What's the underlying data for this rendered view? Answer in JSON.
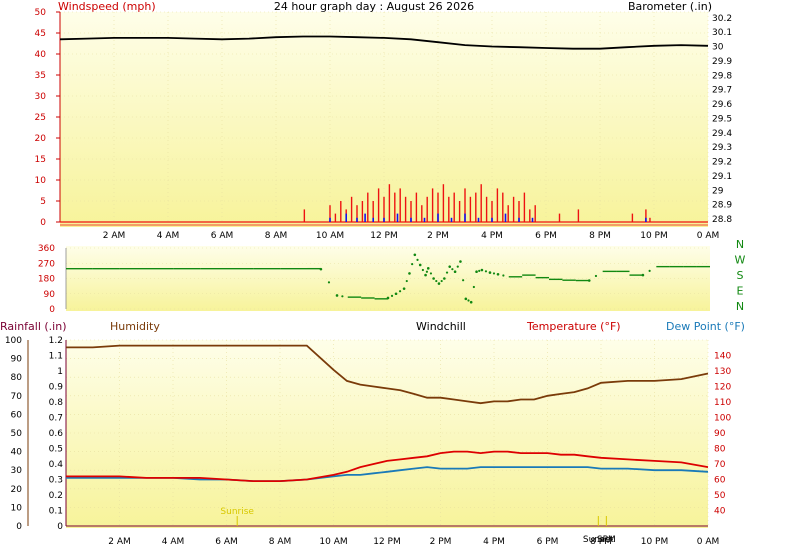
{
  "title": "24 hour graph day : August 26 2026",
  "colors": {
    "panel_top": "#fefee9",
    "panel_bottom": "#f7f39a",
    "wind_avg": "#1111ee",
    "wind_gust": "#ee1111",
    "barometer": "#000000",
    "direction": "#118811",
    "humidity": "#7a3b0a",
    "temperature": "#dd0000",
    "dewpoint": "#1a7ab8",
    "rain_axis": "#7a0033"
  },
  "chart_data": [
    {
      "type": "line",
      "id": "wind_baro",
      "left_label": "Windspeed (mph)",
      "right_label": "Barometer (.in)",
      "left_ylim": [
        0,
        50
      ],
      "left_ticks": [
        "0",
        "5",
        "10",
        "15",
        "20",
        "25",
        "30",
        "35",
        "40",
        "45",
        "50"
      ],
      "right_ylim": [
        28.78,
        30.24
      ],
      "right_ticks": [
        "28.8",
        "28.9",
        "29",
        "29.1",
        "29.2",
        "29.3",
        "29.4",
        "29.5",
        "29.6",
        "29.7",
        "29.8",
        "29.9",
        "30",
        "30.1",
        "30.2"
      ],
      "x_ticks": [
        "2 AM",
        "4 AM",
        "6 AM",
        "8 AM",
        "10 AM",
        "12 PM",
        "2 PM",
        "4 PM",
        "6 PM",
        "8 PM",
        "10 PM",
        "0 AM"
      ],
      "x_range_hours": [
        0,
        24
      ],
      "series": [
        {
          "name": "Barometer (.in)",
          "axis": "right",
          "x": [
            0,
            1,
            2,
            3,
            4,
            5,
            6,
            7,
            8,
            9,
            10,
            11,
            12,
            13,
            14,
            15,
            16,
            17,
            18,
            19,
            20,
            21,
            22,
            23,
            24
          ],
          "values": [
            30.05,
            30.055,
            30.06,
            30.06,
            30.06,
            30.055,
            30.05,
            30.055,
            30.065,
            30.07,
            30.07,
            30.065,
            30.06,
            30.05,
            30.03,
            30.01,
            30.0,
            29.995,
            29.99,
            29.985,
            29.985,
            29.995,
            30.005,
            30.01,
            30.005
          ]
        },
        {
          "name": "Wind gust",
          "axis": "left",
          "x": [
            9.05,
            9.3,
            10.0,
            10.2,
            10.4,
            10.6,
            10.8,
            11.0,
            11.2,
            11.4,
            11.6,
            11.8,
            12.0,
            12.2,
            12.4,
            12.6,
            12.8,
            13.0,
            13.2,
            13.4,
            13.6,
            13.8,
            14.0,
            14.2,
            14.4,
            14.6,
            14.8,
            15.0,
            15.2,
            15.4,
            15.6,
            15.8,
            16.0,
            16.2,
            16.4,
            16.6,
            16.8,
            17.0,
            17.2,
            17.4,
            17.6,
            18.5,
            19.2,
            21.2,
            21.7,
            21.85
          ],
          "values": [
            3,
            0,
            4,
            2,
            5,
            3,
            6,
            4,
            5,
            7,
            5,
            8,
            6,
            9,
            7,
            8,
            6,
            5,
            7,
            4,
            6,
            8,
            7,
            9,
            6,
            7,
            5,
            8,
            6,
            7,
            9,
            6,
            5,
            8,
            7,
            4,
            6,
            5,
            7,
            3,
            4,
            2,
            3,
            2,
            3,
            1
          ]
        },
        {
          "name": "Wind average",
          "axis": "left",
          "x": [
            10.0,
            10.3,
            10.6,
            11.0,
            11.3,
            11.6,
            12.0,
            12.5,
            13.0,
            13.5,
            14.0,
            14.5,
            15.0,
            15.5,
            16.0,
            16.5,
            17.0,
            17.5,
            21.7
          ],
          "values": [
            1,
            0,
            2,
            1,
            2,
            1,
            1,
            2,
            1,
            1,
            2,
            1,
            2,
            1,
            1,
            2,
            1,
            1,
            1
          ]
        }
      ]
    },
    {
      "type": "scatter",
      "id": "direction",
      "ylim": [
        0,
        360
      ],
      "y_ticks": [
        "0",
        "90",
        "180",
        "270",
        "360"
      ],
      "compass_labels": [
        "N",
        "W",
        "S",
        "E",
        "N"
      ],
      "x_range_hours": [
        0,
        24
      ],
      "series": [
        {
          "name": "Wind direction",
          "x": [
            0,
            1,
            2,
            3,
            4,
            5,
            6,
            7,
            8,
            9,
            9.5,
            10.1,
            10.5,
            11,
            11.5,
            12,
            12.3,
            12.6,
            12.8,
            13.0,
            13.2,
            13.4,
            13.5,
            13.7,
            13.9,
            14.1,
            14.3,
            14.5,
            14.7,
            14.9,
            15.1,
            15.3,
            15.5,
            15.8,
            16.1,
            16.5,
            17.0,
            17.5,
            18.0,
            18.5,
            19.0,
            19.5,
            20.0,
            20.5,
            21.0,
            21.5,
            22.0,
            22.5,
            23.0,
            23.5,
            24.0
          ],
          "values": [
            238,
            238,
            238,
            238,
            238,
            238,
            238,
            238,
            238,
            238,
            235,
            80,
            70,
            65,
            60,
            65,
            90,
            120,
            210,
            320,
            260,
            200,
            240,
            180,
            150,
            180,
            250,
            220,
            280,
            60,
            40,
            220,
            230,
            215,
            205,
            190,
            200,
            185,
            175,
            170,
            168,
            168,
            222,
            222,
            200,
            200,
            250,
            250,
            250,
            250,
            250
          ]
        }
      ]
    },
    {
      "type": "line",
      "id": "temp_hum",
      "labels": [
        "Rainfall (.in)",
        "Humidity",
        "Windchill",
        "Temperature (°F)",
        "Dew Point (°F)"
      ],
      "humidity_ylim": [
        0,
        100
      ],
      "humidity_ticks": [
        "0",
        "10",
        "20",
        "30",
        "40",
        "50",
        "60",
        "70",
        "80",
        "90",
        "100"
      ],
      "rain_ylim": [
        0,
        1.2
      ],
      "rain_ticks": [
        "0",
        "0.1",
        "0.2",
        "0.3",
        "0.4",
        "0.5",
        "0.6",
        "0.7",
        "0.8",
        "0.9",
        "1",
        "1.1",
        "1.2"
      ],
      "temp_ylim": [
        30,
        150
      ],
      "temp_ticks": [
        "40",
        "50",
        "60",
        "70",
        "80",
        "90",
        "100",
        "110",
        "120",
        "130",
        "140"
      ],
      "x_ticks": [
        "2 AM",
        "4 AM",
        "6 AM",
        "8 AM",
        "10 AM",
        "12 PM",
        "2 PM",
        "4 PM",
        "6 PM",
        "8 PM",
        "10 PM",
        "0 AM"
      ],
      "x_range_hours": [
        0,
        24
      ],
      "markers": [
        {
          "label": "Sunrise",
          "hour": 6.4
        },
        {
          "label": "Sunset",
          "hour": 19.9
        },
        {
          "label": "SPM",
          "hour": 20.2
        }
      ],
      "series": [
        {
          "name": "Humidity",
          "axis": "humidity",
          "x": [
            0,
            1,
            2,
            3,
            4,
            5,
            6,
            7,
            8,
            9,
            10,
            10.5,
            11,
            11.5,
            12,
            12.5,
            13,
            13.5,
            14,
            14.5,
            15,
            15.5,
            16,
            16.5,
            17,
            17.5,
            18,
            18.5,
            19,
            19.5,
            20,
            21,
            22,
            23,
            24
          ],
          "values": [
            96,
            96,
            97,
            97,
            97,
            97,
            97,
            97,
            97,
            97,
            84,
            78,
            76,
            75,
            74,
            73,
            71,
            69,
            69,
            68,
            67,
            66,
            67,
            67,
            68,
            68,
            70,
            71,
            72,
            74,
            77,
            78,
            78,
            79,
            82
          ]
        },
        {
          "name": "Temperature (°F)",
          "axis": "temp",
          "x": [
            0,
            1,
            2,
            3,
            4,
            5,
            6,
            7,
            8,
            9,
            10,
            10.5,
            11,
            11.5,
            12,
            12.5,
            13,
            13.5,
            14,
            14.5,
            15,
            15.5,
            16,
            16.5,
            17,
            17.5,
            18,
            18.5,
            19,
            19.5,
            20,
            21,
            22,
            23,
            24
          ],
          "values": [
            62,
            62,
            62,
            61,
            61,
            61,
            60,
            59,
            59,
            60,
            63,
            65,
            68,
            70,
            72,
            73,
            74,
            75,
            77,
            78,
            78,
            77,
            78,
            78,
            77,
            77,
            77,
            76,
            76,
            75,
            74,
            73,
            72,
            71,
            68
          ]
        },
        {
          "name": "Dew Point (°F)",
          "axis": "temp",
          "x": [
            0,
            1,
            2,
            3,
            4,
            5,
            6,
            7,
            8,
            9,
            10,
            10.5,
            11,
            11.5,
            12,
            12.5,
            13,
            13.5,
            14,
            14.5,
            15,
            15.5,
            16,
            16.5,
            17,
            17.5,
            18,
            18.5,
            19,
            19.5,
            20,
            21,
            22,
            23,
            24
          ],
          "values": [
            61,
            61,
            61,
            61,
            61,
            60,
            60,
            59,
            59,
            60,
            62,
            63,
            63,
            64,
            65,
            66,
            67,
            68,
            67,
            67,
            67,
            68,
            68,
            68,
            68,
            68,
            68,
            68,
            68,
            68,
            67,
            67,
            66,
            66,
            65
          ]
        }
      ]
    }
  ]
}
